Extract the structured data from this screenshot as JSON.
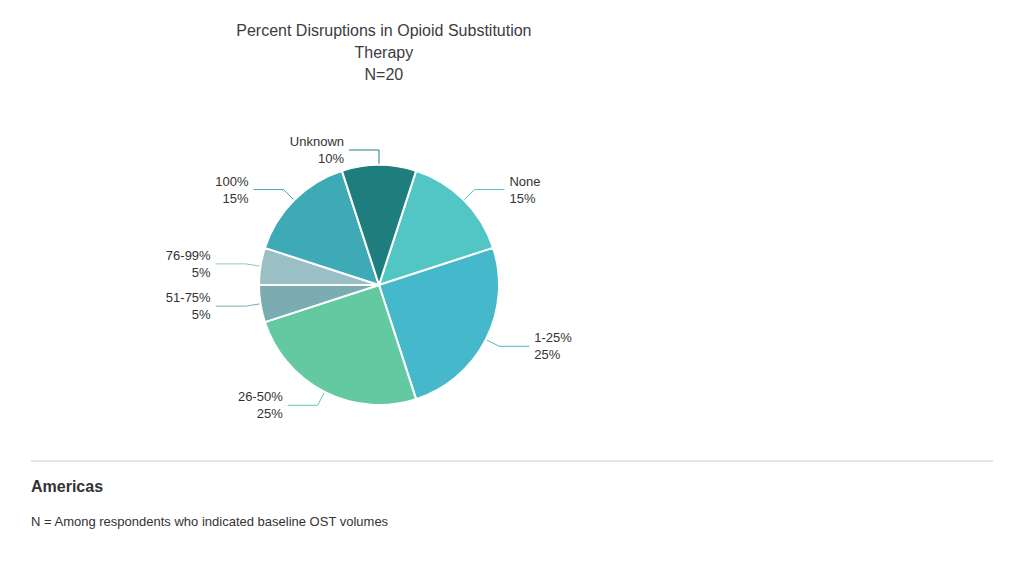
{
  "chart_data": {
    "type": "pie",
    "title": "Percent Disruptions in Opioid Substitution\nTherapy\nN=20",
    "categories": [
      "None",
      "1-25%",
      "26-50%",
      "51-75%",
      "76-99%",
      "100%",
      "Unknown"
    ],
    "values": [
      15,
      25,
      25,
      5,
      5,
      15,
      10
    ],
    "value_labels": [
      "15%",
      "25%",
      "25%",
      "5%",
      "5%",
      "15%",
      "10%"
    ],
    "data_labels": true,
    "colors": [
      "#52C5C5",
      "#45B8CC",
      "#62C9A0",
      "#7AACB2",
      "#9ABFC5",
      "#3DAAB5",
      "#1E7E7E"
    ],
    "annotations": [
      "Americas",
      "N = Among respondents who indicated baseline OST volumes"
    ],
    "legend": "none"
  }
}
